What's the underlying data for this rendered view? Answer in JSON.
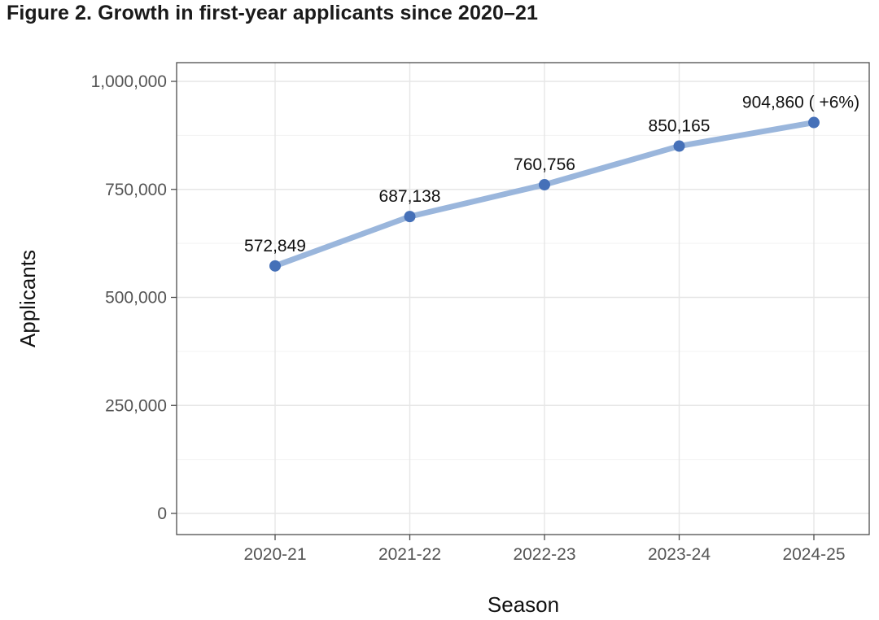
{
  "figure": {
    "title": "Figure 2. Growth in first-year applicants since 2020–21"
  },
  "chart_data": {
    "type": "line",
    "categories": [
      "2020-21",
      "2021-22",
      "2022-23",
      "2023-24",
      "2024-25"
    ],
    "series": [
      {
        "values": [
          572849,
          687138,
          760756,
          850165,
          904860
        ],
        "data_labels": [
          "572,849",
          "687,138",
          "760,756",
          "850,165",
          "904,860 ( +6%)"
        ]
      }
    ],
    "xlabel": "Season",
    "ylabel": "Applicants",
    "ylim": [
      0,
      1000000
    ],
    "yticks": [
      0,
      250000,
      500000,
      750000,
      1000000
    ],
    "ytick_labels": [
      "0",
      "250,000",
      "500,000",
      "750,000",
      "1,000,000"
    ],
    "grid": true,
    "line_color": "#9ab6dc",
    "marker_color": "#4570b8"
  }
}
